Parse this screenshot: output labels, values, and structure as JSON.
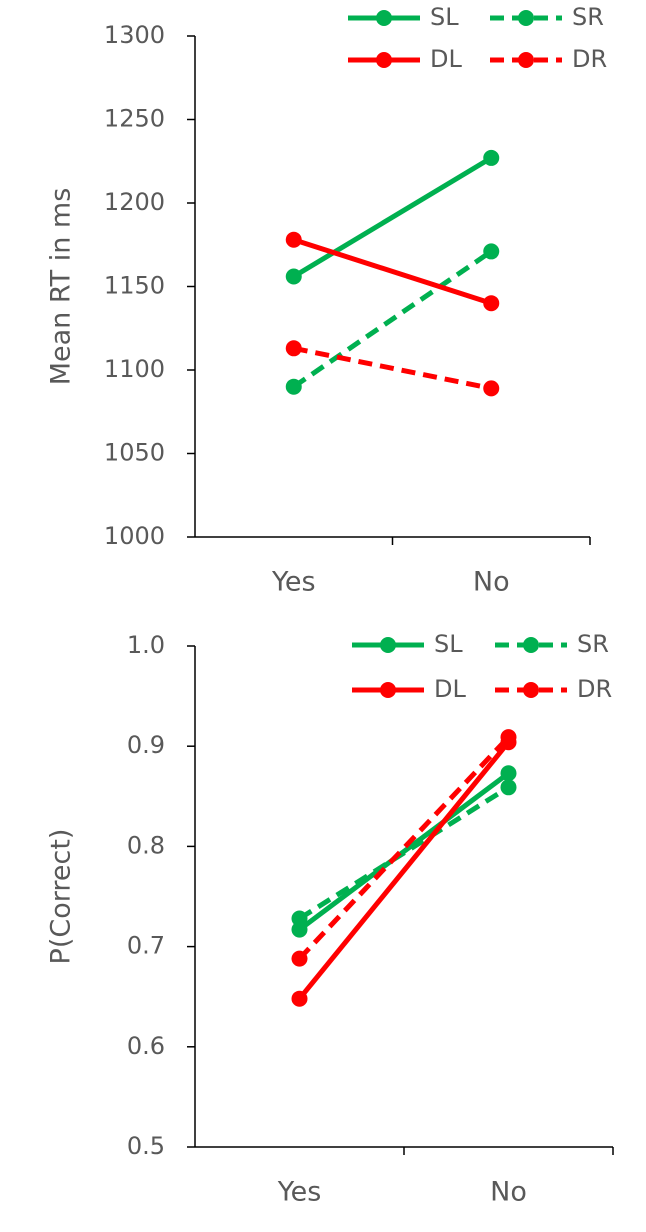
{
  "chart_data": [
    {
      "type": "line",
      "y_label": "Mean RT in ms",
      "categories": [
        "Yes",
        "No"
      ],
      "series": [
        {
          "name": "SL",
          "color": "#00b050",
          "dash": false,
          "values": [
            1156,
            1227
          ]
        },
        {
          "name": "SR",
          "color": "#00b050",
          "dash": true,
          "values": [
            1090,
            1171
          ]
        },
        {
          "name": "DL",
          "color": "#ff0000",
          "dash": false,
          "values": [
            1178,
            1140
          ]
        },
        {
          "name": "DR",
          "color": "#ff0000",
          "dash": true,
          "values": [
            1113,
            1089
          ]
        }
      ],
      "ylim": [
        1000,
        1300
      ],
      "yticks": [
        1000,
        1050,
        1100,
        1150,
        1200,
        1250,
        1300
      ],
      "legend": "upper right"
    },
    {
      "type": "line",
      "y_label": "P(Correct)",
      "categories": [
        "Yes",
        "No"
      ],
      "series": [
        {
          "name": "SL",
          "color": "#00b050",
          "dash": false,
          "values": [
            0.717,
            0.873
          ]
        },
        {
          "name": "SR",
          "color": "#00b050",
          "dash": true,
          "values": [
            0.728,
            0.859
          ]
        },
        {
          "name": "DL",
          "color": "#ff0000",
          "dash": false,
          "values": [
            0.648,
            0.904
          ]
        },
        {
          "name": "DR",
          "color": "#ff0000",
          "dash": true,
          "values": [
            0.688,
            0.909
          ]
        }
      ],
      "ylim": [
        0.5,
        1
      ],
      "yticks": [
        0.5,
        0.6,
        0.7,
        0.8,
        0.9,
        {
          "value": 1,
          "label": "1.0"
        }
      ],
      "legend": "upper right"
    }
  ]
}
